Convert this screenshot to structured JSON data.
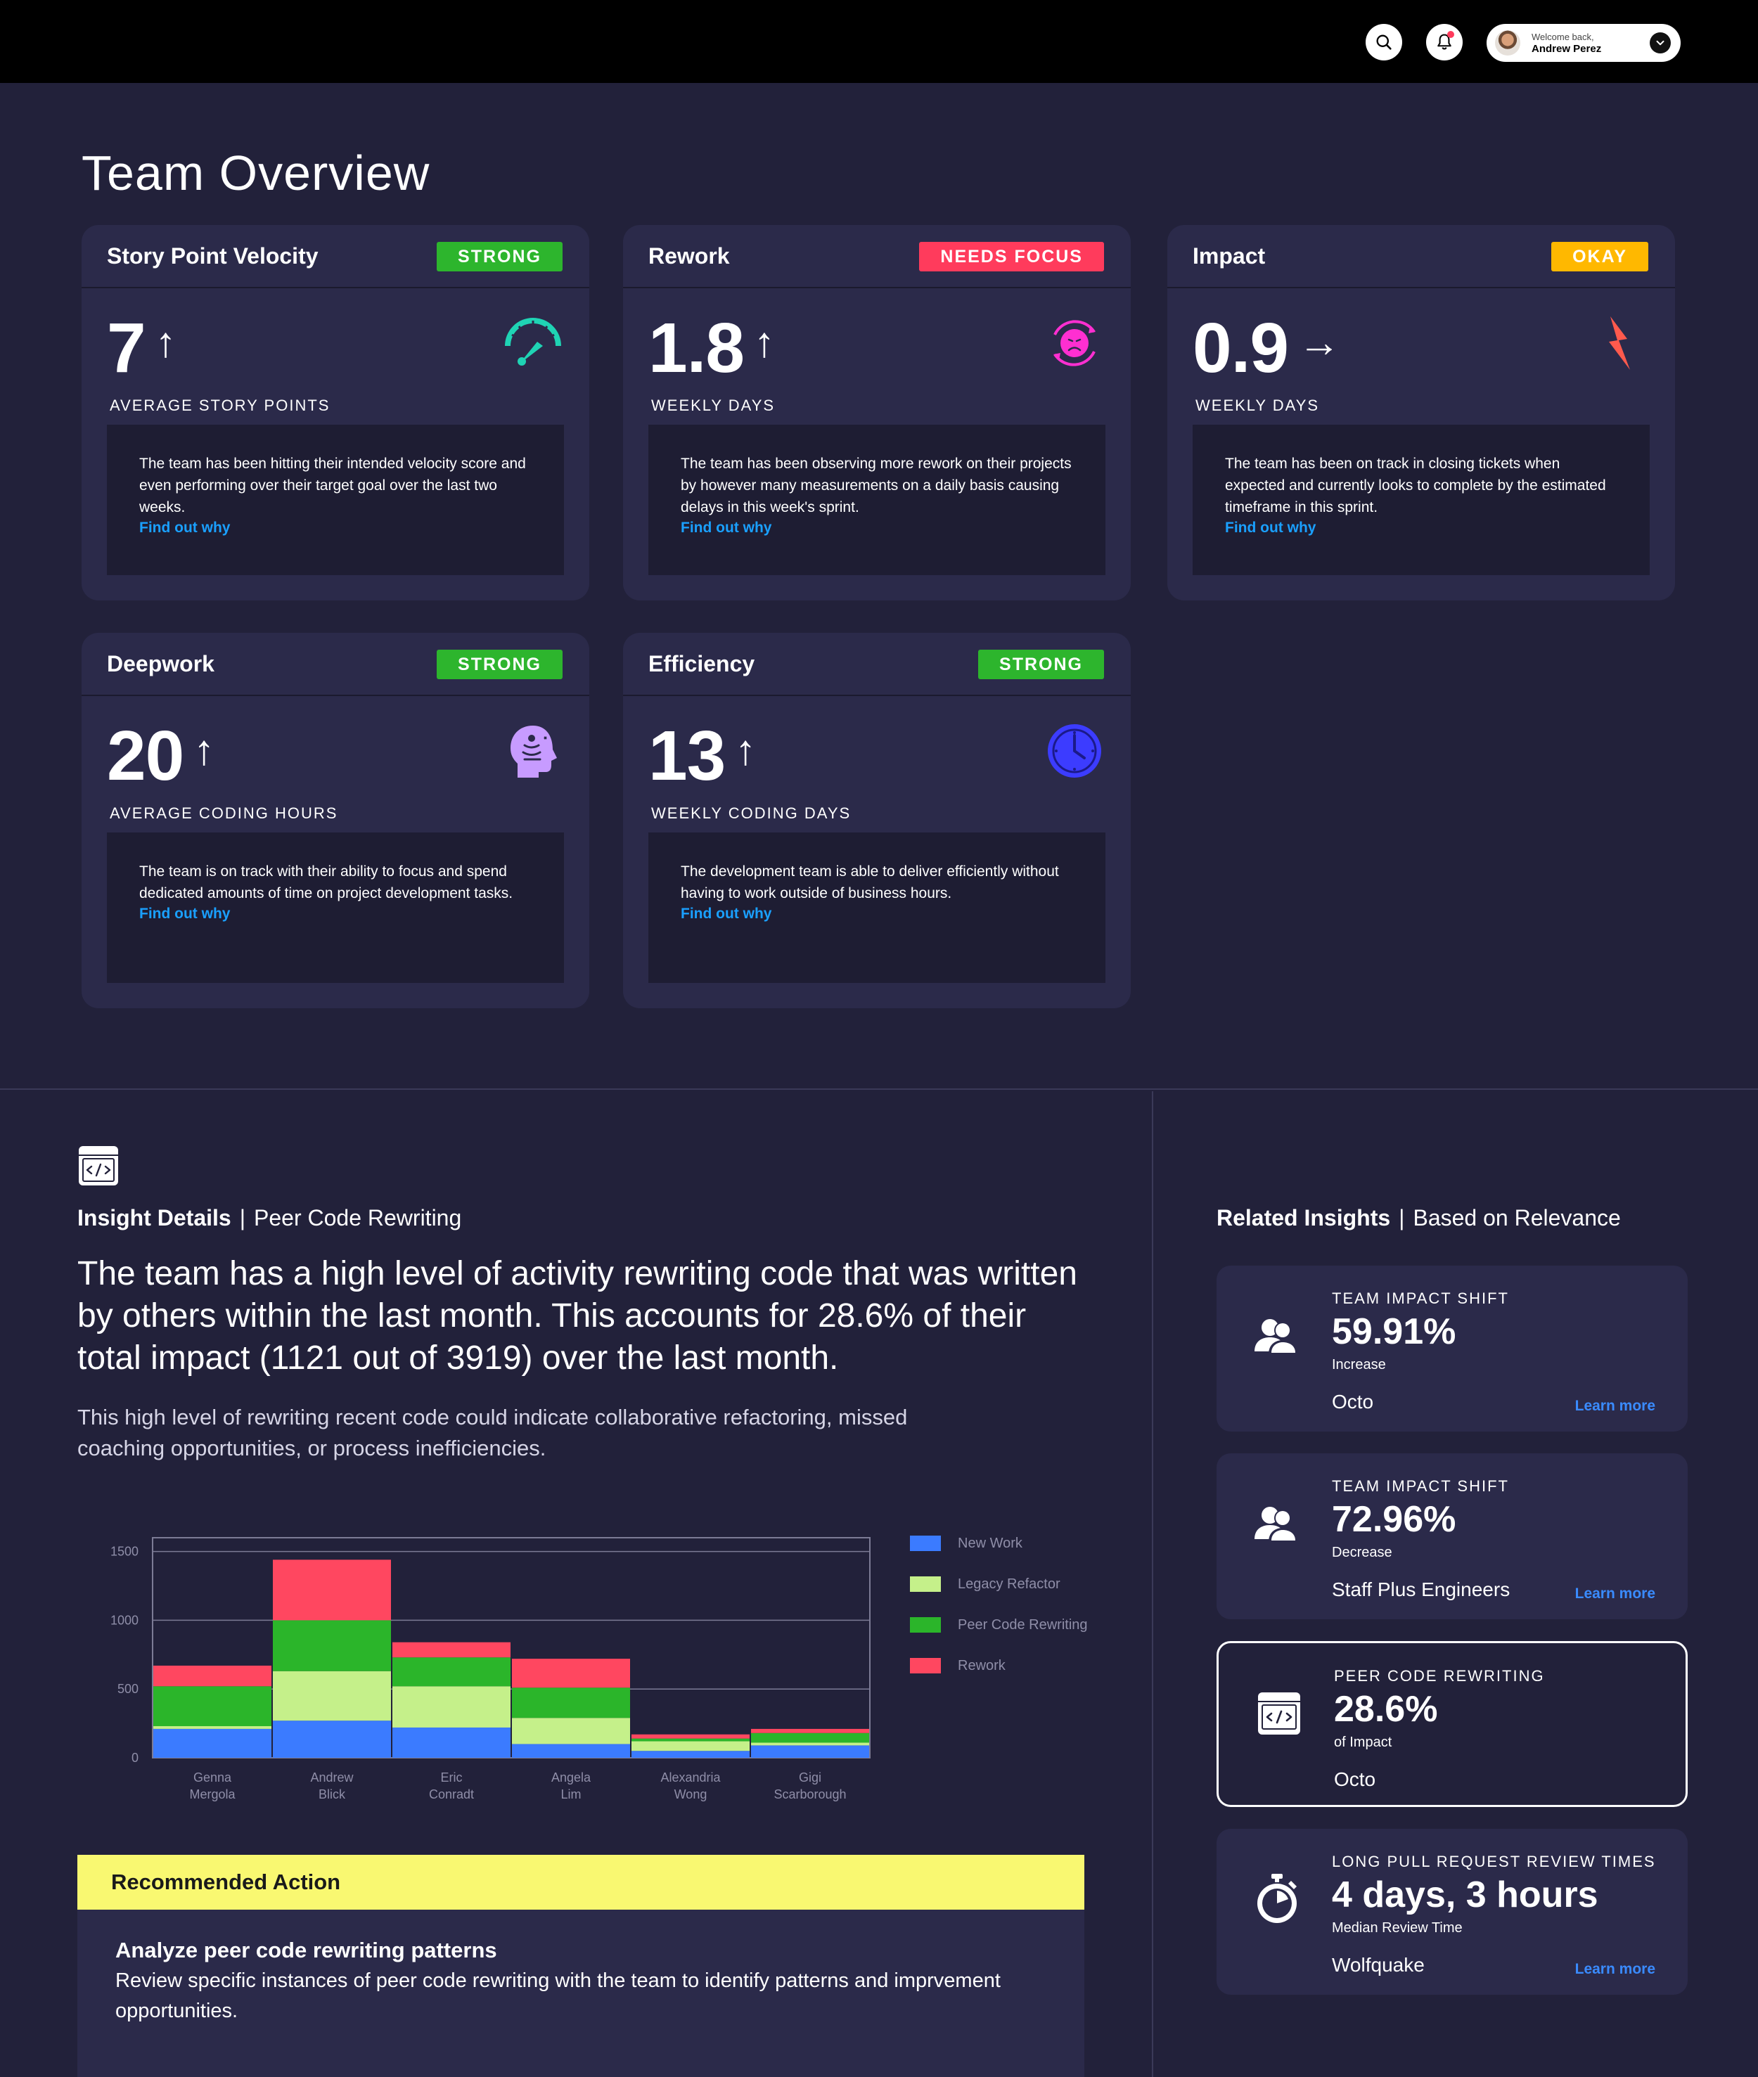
{
  "header": {
    "welcome": "Welcome back,",
    "user_name": "Andrew Perez"
  },
  "page_title": "Team Overview",
  "cards": [
    {
      "title": "Story Point Velocity",
      "badge": "STRONG",
      "badge_color": "#2db52d",
      "value": "7",
      "trend": "↑",
      "label": "AVERAGE STORY POINTS",
      "icon": "speedometer-icon",
      "icon_color": "#1fd3b4",
      "description": "The team has been hitting their intended velocity score and even performing over their target goal over the last two weeks.",
      "link": "Find out why"
    },
    {
      "title": "Rework",
      "badge": "NEEDS FOCUS",
      "badge_color": "#ff3b5c",
      "value": "1.8",
      "trend": "↑",
      "label": "WEEKLY DAYS",
      "icon": "sad-face-cycle-icon",
      "icon_color": "#ff2fd1",
      "description": "The team has been observing more rework on their projects by however many measurements on a daily basis causing delays in this week's sprint.",
      "link": "Find out why"
    },
    {
      "title": "Impact",
      "badge": "OKAY",
      "badge_color": "#ffb800",
      "value": "0.9",
      "trend": "→",
      "label": "WEEKLY DAYS",
      "icon": "lightning-icon",
      "icon_color": "#ff5a4d",
      "description": "The team has been on track in closing tickets when expected and currently looks to complete by the estimated timeframe in this sprint.",
      "link": "Find out why"
    },
    {
      "title": "Deepwork",
      "badge": "STRONG",
      "badge_color": "#2db52d",
      "value": "20",
      "trend": "↑",
      "label": "AVERAGE CODING HOURS",
      "icon": "meditation-head-icon",
      "icon_color": "#c79bff",
      "description": "The team is on track with their ability to focus and spend dedicated amounts of time on project development tasks.",
      "link": "Find out why"
    },
    {
      "title": "Efficiency",
      "badge": "STRONG",
      "badge_color": "#2db52d",
      "value": "13",
      "trend": "↑",
      "label": "WEEKLY CODING DAYS",
      "icon": "clock-icon",
      "icon_color": "#3c3cff",
      "description": "The development team is able to deliver efficiently without having to work outside of business hours.",
      "link": "Find out why"
    }
  ],
  "insight": {
    "heading_bold": "Insight Details",
    "heading_sep": "|",
    "heading_rest": "Peer Code Rewriting",
    "main": "The team has a high level of activity rewriting code that was written by others within the last month. This accounts for 28.6% of their total impact (1121 out of 3919) over the last month.",
    "sub": "This high level of rewriting recent code could indicate collaborative refactoring, missed coaching opportunities, or process inefficiencies."
  },
  "chart_data": {
    "type": "bar",
    "stacked": true,
    "categories": [
      "Genna Mergola",
      "Andrew Blick",
      "Eric Conradt",
      "Angela Lim",
      "Alexandria Wong",
      "Gigi Scarborough"
    ],
    "category_lines": [
      [
        "Genna",
        "Mergola"
      ],
      [
        "Andrew",
        "Blick"
      ],
      [
        "Eric",
        "Conradt"
      ],
      [
        "Angela",
        "Lim"
      ],
      [
        "Alexandria",
        "Wong"
      ],
      [
        "Gigi",
        "Scarborough"
      ]
    ],
    "series": [
      {
        "name": "New Work",
        "color": "#3b7bff",
        "values": [
          210,
          270,
          220,
          100,
          50,
          90
        ]
      },
      {
        "name": "Legacy Refactor",
        "color": "#c5f08a",
        "values": [
          20,
          360,
          300,
          190,
          70,
          20
        ]
      },
      {
        "name": "Peer Code Rewriting",
        "color": "#2bb52a",
        "values": [
          290,
          370,
          210,
          220,
          20,
          70
        ]
      },
      {
        "name": "Rework",
        "color": "#ff4760",
        "values": [
          150,
          440,
          110,
          210,
          30,
          30
        ]
      }
    ],
    "ylim": [
      0,
      1600
    ],
    "yticks": [
      0,
      500,
      1000,
      1500
    ],
    "grid": true,
    "legend": "right"
  },
  "recommended": {
    "header": "Recommended Action",
    "title": "Analyze peer code rewriting patterns",
    "text": "Review specific instances of peer code rewriting with the team to identify patterns and imprvement opportunities."
  },
  "related": {
    "heading_bold": "Related Insights",
    "heading_sep": "|",
    "heading_rest": "Based on Relevance",
    "items": [
      {
        "label": "TEAM IMPACT SHIFT",
        "value": "59.91%",
        "sub": "Increase",
        "team": "Octo",
        "link": "Learn more",
        "icon": "users-icon"
      },
      {
        "label": "TEAM IMPACT SHIFT",
        "value": "72.96%",
        "sub": "Decrease",
        "team": "Staff Plus Engineers",
        "link": "Learn more",
        "icon": "users-icon"
      },
      {
        "label": "PEER CODE REWRITING",
        "value": "28.6%",
        "sub": "of Impact",
        "team": "Octo",
        "link": "",
        "icon": "code-icon"
      },
      {
        "label": "LONG PULL REQUEST REVIEW TIMES",
        "value": "4 days, 3 hours",
        "sub": "Median Review Time",
        "team": "Wolfquake",
        "link": "Learn more",
        "icon": "stopwatch-icon"
      }
    ]
  }
}
